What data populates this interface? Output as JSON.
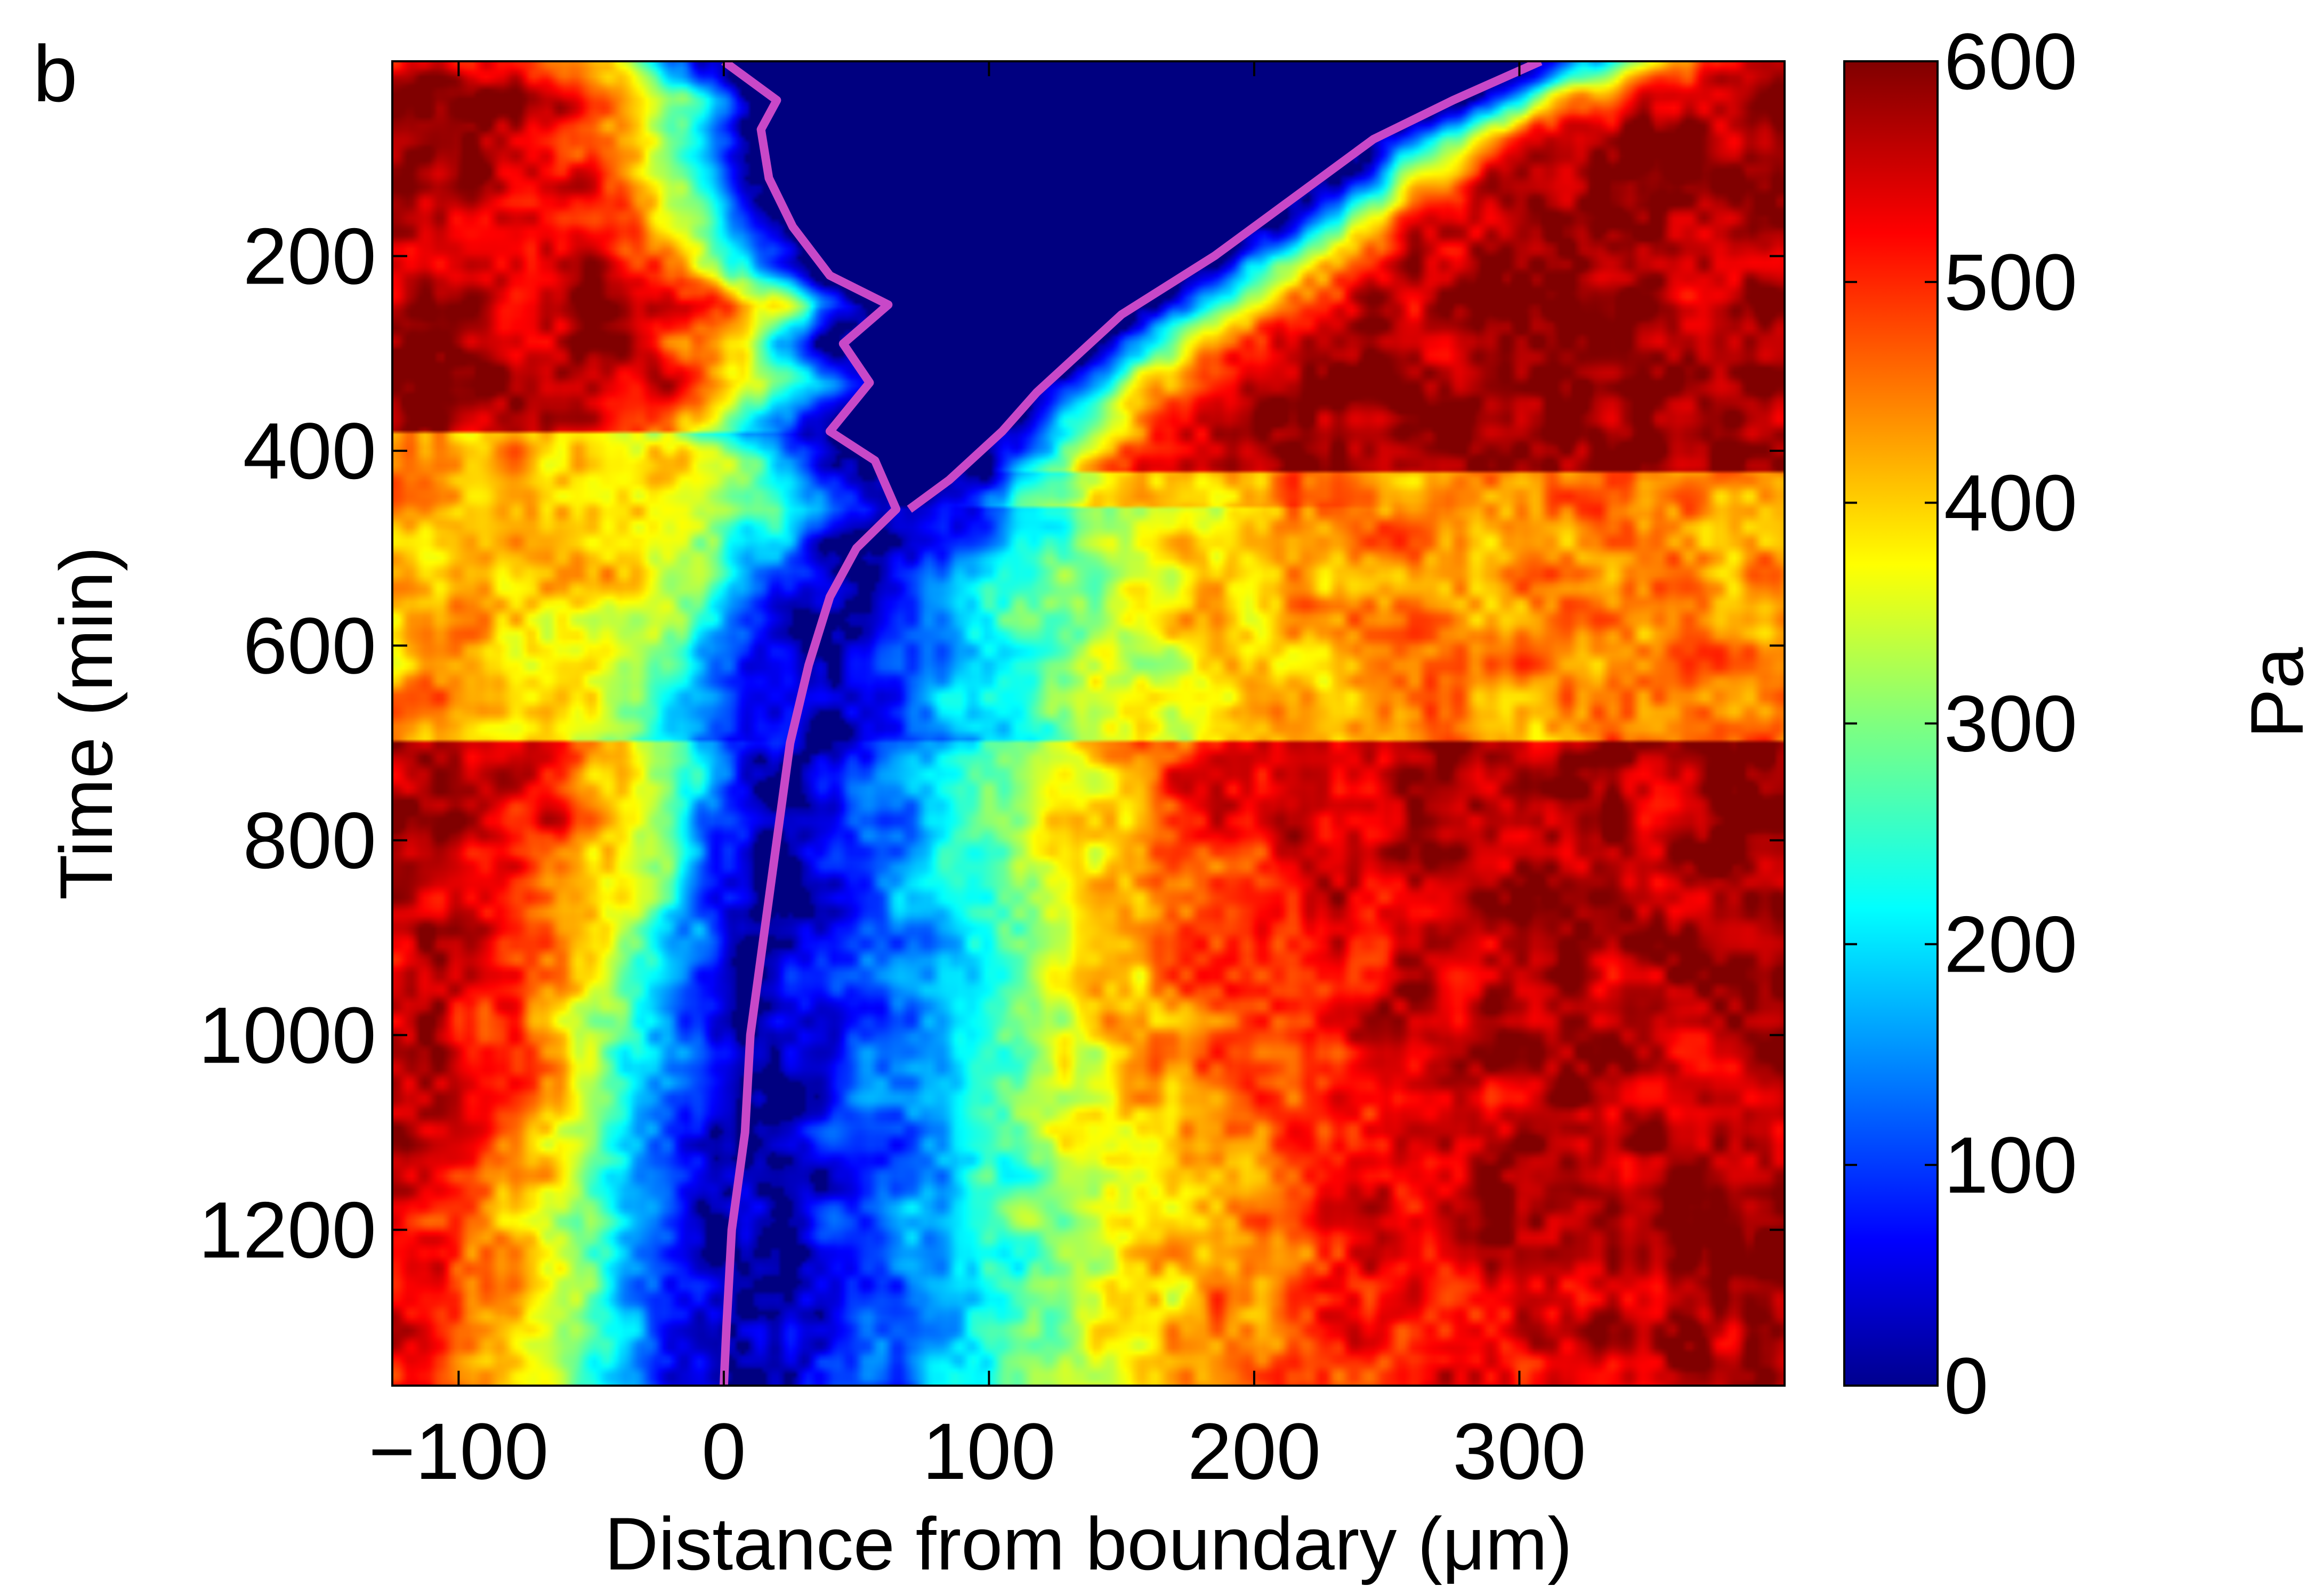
{
  "panel_label": "b",
  "chart_data": {
    "type": "heatmap",
    "title": "",
    "xlabel": "Distance from boundary (μm)",
    "ylabel": "Time (min)",
    "colorbar_label": "Pa",
    "colormap": "jet",
    "xlim": [
      -125,
      400
    ],
    "ylim": [
      0,
      1360
    ],
    "y_reversed": true,
    "clim": [
      0,
      600
    ],
    "x_ticks": [
      -100,
      0,
      100,
      200,
      300
    ],
    "x_tick_labels": [
      "−100",
      "0",
      "100",
      "200",
      "300"
    ],
    "y_ticks": [
      200,
      400,
      600,
      800,
      1000,
      1200
    ],
    "y_tick_labels": [
      "200",
      "400",
      "600",
      "800",
      "1000",
      "1200"
    ],
    "colorbar_ticks": [
      0,
      100,
      200,
      300,
      400,
      500,
      600
    ],
    "colorbar_tick_labels": [
      "0",
      "100",
      "200",
      "300",
      "400",
      "500",
      "600"
    ],
    "grid": false,
    "field_description_rows": [
      {
        "t": 0,
        "zero_region": [
          -3,
          308
        ]
      },
      {
        "t": 200,
        "zero_region": [
          33,
          188
        ]
      },
      {
        "t": 300,
        "zero_region": [
          52,
          118
        ]
      },
      {
        "t": 440,
        "zero_region": [
          62,
          72
        ]
      }
    ],
    "boundary_line": {
      "name": "",
      "color": "#c848c8",
      "x_time_series": [
        {
          "x": 0,
          "t": 0
        },
        {
          "x": 20,
          "t": 40
        },
        {
          "x": 14,
          "t": 70
        },
        {
          "x": 17,
          "t": 120
        },
        {
          "x": 26,
          "t": 170
        },
        {
          "x": 40,
          "t": 220
        },
        {
          "x": 62,
          "t": 250
        },
        {
          "x": 45,
          "t": 290
        },
        {
          "x": 55,
          "t": 330
        },
        {
          "x": 40,
          "t": 380
        },
        {
          "x": 57,
          "t": 410
        },
        {
          "x": 65,
          "t": 460
        },
        {
          "x": 50,
          "t": 500
        },
        {
          "x": 40,
          "t": 550
        },
        {
          "x": 32,
          "t": 620
        },
        {
          "x": 25,
          "t": 700
        },
        {
          "x": 20,
          "t": 800
        },
        {
          "x": 15,
          "t": 900
        },
        {
          "x": 10,
          "t": 1000
        },
        {
          "x": 8,
          "t": 1100
        },
        {
          "x": 3,
          "t": 1200
        },
        {
          "x": 1,
          "t": 1300
        },
        {
          "x": 0,
          "t": 1360
        }
      ]
    },
    "wound_edge_line": {
      "name": "",
      "color": "#c848c8",
      "x_time_series": [
        {
          "x": 308,
          "t": 0
        },
        {
          "x": 275,
          "t": 40
        },
        {
          "x": 245,
          "t": 80
        },
        {
          "x": 225,
          "t": 120
        },
        {
          "x": 205,
          "t": 160
        },
        {
          "x": 185,
          "t": 200
        },
        {
          "x": 150,
          "t": 260
        },
        {
          "x": 118,
          "t": 340
        },
        {
          "x": 105,
          "t": 380
        },
        {
          "x": 85,
          "t": 430
        },
        {
          "x": 70,
          "t": 460
        }
      ]
    }
  }
}
